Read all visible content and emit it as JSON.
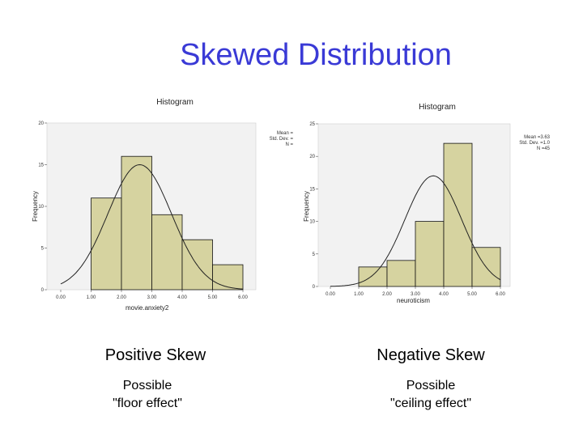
{
  "title": "Skewed Distribution",
  "captions": {
    "left_main": "Positive Skew",
    "left_sub1": "Possible",
    "left_sub2": "\"floor effect\"",
    "right_main": "Negative Skew",
    "right_sub1": "Possible",
    "right_sub2": "\"ceiling effect\""
  },
  "colors": {
    "title": "#3a3ad6",
    "bar": "#d6d3a0",
    "bar_edge": "#111111",
    "plot_bg": "#f2f2f2"
  },
  "chart_data": [
    {
      "type": "bar",
      "title": "Histogram",
      "xlabel": "movie.anxiety2",
      "ylabel": "Frequency",
      "xlim": [
        0,
        5
      ],
      "ylim": [
        0,
        20
      ],
      "xticks": [
        "0.00",
        "1.00",
        "2.00",
        "3.00",
        "4.00",
        "5.00",
        "6.00"
      ],
      "yticks": [
        "0",
        "5",
        "10",
        "15",
        "20"
      ],
      "bins": [
        [
          1,
          2,
          11
        ],
        [
          2,
          3,
          16
        ],
        [
          3,
          4,
          9
        ],
        [
          4,
          5,
          6
        ],
        [
          5,
          6,
          3
        ]
      ],
      "normal_curve": {
        "mean": 2.6,
        "sd": 1.05,
        "peak": 15
      },
      "stats_lines": [
        "Mean =",
        "Std. Dev. =",
        "N ="
      ]
    },
    {
      "type": "bar",
      "title": "Histogram",
      "xlabel": "neuroticism",
      "ylabel": "Frequency",
      "xlim": [
        0,
        6
      ],
      "ylim": [
        0,
        25
      ],
      "xticks": [
        "0.00",
        "1.00",
        "2.00",
        "3.00",
        "4.00",
        "5.00",
        "6.00"
      ],
      "yticks": [
        "0",
        "5",
        "10",
        "15",
        "20",
        "25"
      ],
      "bins": [
        [
          1,
          2,
          3
        ],
        [
          2,
          3,
          4
        ],
        [
          3,
          4,
          10
        ],
        [
          4,
          5,
          22
        ],
        [
          5,
          6,
          6
        ]
      ],
      "normal_curve": {
        "mean": 3.63,
        "sd": 1.0,
        "peak": 17
      },
      "stats_lines": [
        "Mean =3.63",
        "Std. Dev. =1.0",
        "N =45"
      ]
    }
  ]
}
